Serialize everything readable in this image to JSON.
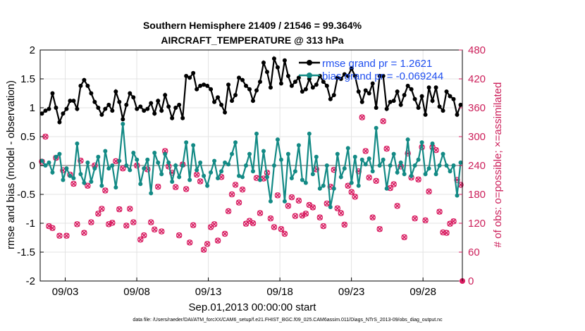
{
  "chart_data": {
    "type": "line",
    "title_line1": "Southern Hemisphere 21409 / 21546 = 99.364%",
    "title_line2": "AIRCRAFT_TEMPERATURE @ 313 hPa",
    "xlabel": "Sep.01,2013 00:00:00 start",
    "ylabel_left": "rmse and bias (model - observation)",
    "ylabel_right": "# of obs: o=possible; ×=assimilated",
    "footnote": "data file: /Users/raeder/DAI/ATM_forcXX/CAM6_setup/f.e21.FHIST_BGC.f09_025.CAM6assim.011/Diags_NTrS_2013-09/obs_diag_output.nc",
    "x_tick_labels": [
      "09/03",
      "09/08",
      "09/13",
      "09/18",
      "09/23",
      "09/28"
    ],
    "x_tick_days": [
      3,
      8,
      13,
      18,
      23,
      28
    ],
    "xlim": [
      1.25,
      30.75
    ],
    "ylim_left": [
      -2,
      2
    ],
    "yticks_left": [
      "2",
      "1.5",
      "1",
      "0.5",
      "0",
      "-0.5",
      "-1",
      "-1.5",
      "-2"
    ],
    "ylim_right": [
      0,
      480
    ],
    "yticks_right": [
      "480",
      "420",
      "360",
      "300",
      "240",
      "180",
      "120",
      "60",
      "0"
    ],
    "colors": {
      "rmse": "#000000",
      "bias": "#138a85",
      "obs": "#d81b60",
      "legend_text": "#1f4ff0",
      "zero_line": "#b0b0b0",
      "grid": "#e3e3e3"
    },
    "series": [
      {
        "name": "rmse",
        "legend": "rmse grand pr = 1.2621",
        "values": [
          0.9,
          0.95,
          0.98,
          1.25,
          1.0,
          0.75,
          0.9,
          0.98,
          1.12,
          1.12,
          0.98,
          1.38,
          1.48,
          1.38,
          1.25,
          1.1,
          1.0,
          0.88,
          0.98,
          1.05,
          0.95,
          1.28,
          1.1,
          0.8,
          1.05,
          1.25,
          1.18,
          0.98,
          1.02,
          0.95,
          0.98,
          1.08,
          0.9,
          1.12,
          0.95,
          1.22,
          1.02,
          0.82,
          1.0,
          1.05,
          0.82,
          1.55,
          1.52,
          1.6,
          1.32,
          1.38,
          1.4,
          1.38,
          1.32,
          1.1,
          1.18,
          1.05,
          0.92,
          1.4,
          1.12,
          1.22,
          1.52,
          1.48,
          1.38,
          1.32,
          1.12,
          1.3,
          1.45,
          1.78,
          1.62,
          1.35,
          1.85,
          1.7,
          1.42,
          1.82,
          1.55,
          1.38,
          1.45,
          1.52,
          1.28,
          1.32,
          1.5,
          1.35,
          1.4,
          1.55,
          1.45,
          1.38,
          1.15,
          1.22,
          1.52,
          1.5,
          1.58,
          1.55,
          1.68,
          1.55,
          1.28,
          1.1,
          1.3,
          1.25,
          1.42,
          1.0,
          1.55,
          1.55,
          0.98,
          1.1,
          1.12,
          1.28,
          1.05,
          1.22,
          1.38,
          1.32,
          1.15,
          1.0,
          1.2,
          0.88,
          1.35,
          1.12,
          1.35,
          1.02,
          0.95,
          1.28,
          1.2,
          1.15,
          0.88,
          1.05
        ]
      },
      {
        "name": "bias",
        "legend": "bias grand pr = -0.069244",
        "values": [
          0.08,
          0.0,
          0.05,
          -0.12,
          0.15,
          0.2,
          -0.25,
          -0.05,
          -0.18,
          -0.22,
          0.38,
          -0.15,
          -0.3,
          0.05,
          -0.28,
          -0.05,
          0.15,
          -0.35,
          0.25,
          -0.05,
          0.0,
          -0.38,
          0.08,
          0.72,
          0.0,
          -0.08,
          0.22,
          0.1,
          -0.32,
          -0.05,
          0.1,
          -0.48,
          0.22,
          0.05,
          -0.15,
          0.2,
          0.05,
          -0.28,
          0.0,
          -0.2,
          0.0,
          0.4,
          -0.25,
          0.35,
          -0.08,
          0.05,
          -0.18,
          -0.35,
          -0.12,
          0.08,
          -0.22,
          -0.1,
          0.05,
          0.02,
          0.2,
          0.4,
          -0.18,
          -0.2,
          0.0,
          0.2,
          -0.1,
          0.55,
          -0.25,
          0.25,
          -0.2,
          -0.62,
          0.0,
          0.45,
          0.1,
          -0.62,
          0.2,
          -0.22,
          -0.1,
          0.35,
          -0.25,
          -0.3,
          0.55,
          -0.15,
          0.15,
          -0.4,
          -0.35,
          0.0,
          -0.72,
          -0.4,
          0.2,
          -0.2,
          -0.05,
          0.3,
          -0.3,
          0.15,
          -0.35,
          0.1,
          0.02,
          0.12,
          -0.1,
          0.65,
          0.0,
          0.1,
          -0.4,
          0.0,
          0.2,
          -0.12,
          0.05,
          -0.15,
          0.45,
          -0.18,
          0.0,
          0.1,
          0.4,
          -0.15,
          -0.05,
          0.38,
          -0.15,
          0.0,
          0.2,
          0.0,
          -0.1,
          0.0,
          -0.52,
          0.05
        ]
      },
      {
        "name": "obs_possible",
        "values": [
          248,
          300,
          114,
          110,
          256,
          94,
          230,
          94,
          221,
          202,
          118,
          250,
          100,
          198,
          122,
          240,
          140,
          150,
          188,
          118,
          121,
          249,
          149,
          234,
          115,
          150,
          122,
          240,
          86,
          95,
          232,
          122,
          107,
          196,
          103,
          270,
          238,
          225,
          195,
          95,
          242,
          191,
          80,
          116,
          221,
          207,
          65,
          77,
          112,
          118,
          84,
          216,
          98,
          145,
          180,
          200,
          163,
          190,
          119,
          125,
          120,
          214,
          141,
          213,
          225,
          130,
          112,
          178,
          108,
          98,
          156,
          174,
          135,
          167,
          136,
          140,
          158,
          153,
          232,
          132,
          114,
          161,
          196,
          231,
          151,
          141,
          117,
          198,
          185,
          175,
          228,
          340,
          270,
          215,
          132,
          208,
          108,
          332,
          275,
          193,
          201,
          156,
          238,
          91,
          265,
          215,
          130,
          211,
          278,
          126,
          186,
          278,
          272,
          144,
          101,
          100,
          119,
          124,
          210,
          200
        ]
      },
      {
        "name": "obs_assimilated",
        "values": [
          248,
          300,
          114,
          110,
          256,
          94,
          230,
          94,
          221,
          202,
          118,
          250,
          100,
          198,
          122,
          240,
          140,
          150,
          188,
          118,
          121,
          249,
          149,
          234,
          115,
          150,
          122,
          240,
          86,
          95,
          232,
          122,
          107,
          196,
          103,
          270,
          238,
          225,
          195,
          95,
          242,
          191,
          80,
          116,
          221,
          207,
          65,
          77,
          112,
          118,
          84,
          216,
          98,
          145,
          180,
          200,
          163,
          190,
          119,
          125,
          120,
          214,
          141,
          213,
          225,
          130,
          112,
          178,
          108,
          98,
          156,
          174,
          135,
          167,
          136,
          140,
          158,
          153,
          232,
          132,
          114,
          161,
          196,
          231,
          151,
          141,
          117,
          198,
          185,
          175,
          228,
          340,
          270,
          215,
          132,
          208,
          108,
          332,
          275,
          193,
          201,
          156,
          238,
          91,
          265,
          215,
          130,
          211,
          278,
          126,
          186,
          278,
          272,
          144,
          101,
          100,
          119,
          124,
          210,
          200
        ]
      }
    ],
    "legend_position": "top-right"
  }
}
